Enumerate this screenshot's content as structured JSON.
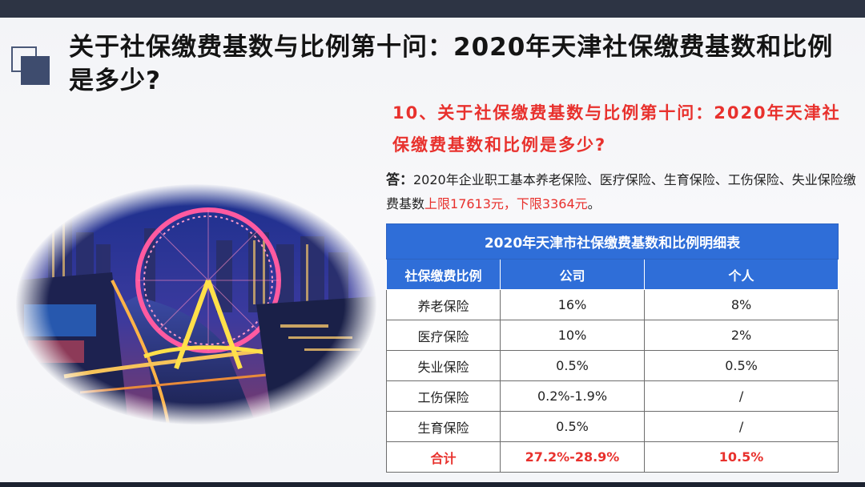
{
  "slide": {
    "title": "关于社保缴费基数与比例第十问：2020年天津社保缴费基数和比例是多少?",
    "question": "10、关于社保缴费基数与比例第十问：2020年天津社保缴费基数和比例是多少?",
    "answer": {
      "label": "答：",
      "text_plain": "2020年企业职工基本养老保险、医疗保险、生育保险、工伤保险、失业保险缴费基数",
      "text_red": "上限17613元，下限3364元",
      "text_end": "。"
    }
  },
  "photo": {
    "subject": "Tianjin Eye ferris wheel night cityscape"
  },
  "table": {
    "caption": "2020年天津市社保缴费基数和比例明细表",
    "headers": [
      "社保缴费比例",
      "公司",
      "个人"
    ],
    "rows": [
      {
        "item": "养老保险",
        "company": "16%",
        "personal": "8%"
      },
      {
        "item": "医疗保险",
        "company": "10%",
        "personal": "2%"
      },
      {
        "item": "失业保险",
        "company": "0.5%",
        "personal": "0.5%"
      },
      {
        "item": "工伤保险",
        "company": "0.2%-1.9%",
        "personal": "/"
      },
      {
        "item": "生育保险",
        "company": "0.5%",
        "personal": "/"
      }
    ],
    "total": {
      "item": "合计",
      "company": "27.2%-28.9%",
      "personal": "10.5%"
    }
  },
  "colors": {
    "accent_red": "#e8312d",
    "table_blue": "#2f6ed8",
    "deco_navy": "#3e4c6e"
  }
}
